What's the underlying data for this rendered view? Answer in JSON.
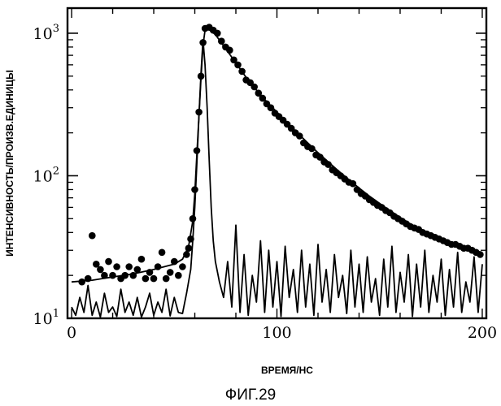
{
  "chart_data": {
    "type": "scatter",
    "figure_caption": "ФИГ.29",
    "xlabel": "ВРЕМЯ/НС",
    "ylabel": "ИНТЕНСИВНОСТЬ/ПРОИЗВ.ЕДИНИЦЫ",
    "xlim": [
      -2,
      202
    ],
    "ylim": [
      10,
      1500
    ],
    "y_scale": "log",
    "grid": false,
    "x_ticks": [
      0,
      100,
      200
    ],
    "x_tick_labels": [
      "0",
      "100",
      "200"
    ],
    "y_ticks": [
      {
        "value": 10,
        "base": "10",
        "exp": "1"
      },
      {
        "value": 100,
        "base": "10",
        "exp": "2"
      },
      {
        "value": 1000,
        "base": "10",
        "exp": "3"
      }
    ],
    "series": [
      {
        "kind": "scatter",
        "marker": "filled-circle",
        "color": "#000000",
        "points": [
          [
            5,
            18
          ],
          [
            8,
            19
          ],
          [
            10,
            38
          ],
          [
            12,
            24
          ],
          [
            14,
            22
          ],
          [
            16,
            20
          ],
          [
            18,
            25
          ],
          [
            20,
            20
          ],
          [
            22,
            23
          ],
          [
            24,
            19
          ],
          [
            26,
            20
          ],
          [
            28,
            23
          ],
          [
            30,
            20
          ],
          [
            32,
            22
          ],
          [
            34,
            26
          ],
          [
            36,
            19
          ],
          [
            38,
            21
          ],
          [
            40,
            19
          ],
          [
            42,
            23
          ],
          [
            44,
            29
          ],
          [
            46,
            19
          ],
          [
            48,
            21
          ],
          [
            50,
            25
          ],
          [
            52,
            20
          ],
          [
            54,
            23
          ],
          [
            56,
            28
          ],
          [
            57,
            31
          ],
          [
            58,
            36
          ],
          [
            59,
            50
          ],
          [
            60,
            80
          ],
          [
            61,
            150
          ],
          [
            62,
            280
          ],
          [
            63,
            500
          ],
          [
            64,
            860
          ],
          [
            65,
            1080
          ],
          [
            67,
            1100
          ],
          [
            69,
            1050
          ],
          [
            71,
            1000
          ],
          [
            73,
            880
          ],
          [
            75,
            800
          ],
          [
            77,
            760
          ],
          [
            79,
            650
          ],
          [
            81,
            600
          ],
          [
            83,
            540
          ],
          [
            85,
            470
          ],
          [
            87,
            450
          ],
          [
            89,
            420
          ],
          [
            91,
            380
          ],
          [
            93,
            350
          ],
          [
            95,
            320
          ],
          [
            97,
            300
          ],
          [
            99,
            275
          ],
          [
            101,
            260
          ],
          [
            103,
            245
          ],
          [
            105,
            230
          ],
          [
            107,
            215
          ],
          [
            109,
            200
          ],
          [
            111,
            190
          ],
          [
            113,
            170
          ],
          [
            115,
            160
          ],
          [
            117,
            155
          ],
          [
            119,
            140
          ],
          [
            121,
            135
          ],
          [
            123,
            125
          ],
          [
            125,
            120
          ],
          [
            127,
            110
          ],
          [
            129,
            105
          ],
          [
            131,
            100
          ],
          [
            133,
            95
          ],
          [
            135,
            90
          ],
          [
            137,
            88
          ],
          [
            139,
            80
          ],
          [
            141,
            75
          ],
          [
            143,
            72
          ],
          [
            145,
            68
          ],
          [
            147,
            65
          ],
          [
            149,
            62
          ],
          [
            151,
            60
          ],
          [
            153,
            57
          ],
          [
            155,
            55
          ],
          [
            157,
            52
          ],
          [
            159,
            50
          ],
          [
            161,
            48
          ],
          [
            163,
            46
          ],
          [
            165,
            44
          ],
          [
            167,
            43
          ],
          [
            169,
            42
          ],
          [
            171,
            40
          ],
          [
            173,
            39
          ],
          [
            175,
            38
          ],
          [
            177,
            37
          ],
          [
            179,
            36
          ],
          [
            181,
            35
          ],
          [
            183,
            34
          ],
          [
            185,
            33
          ],
          [
            187,
            33
          ],
          [
            189,
            32
          ],
          [
            191,
            31
          ],
          [
            193,
            31
          ],
          [
            195,
            30
          ],
          [
            197,
            29
          ],
          [
            199,
            28
          ]
        ]
      },
      {
        "kind": "line",
        "name": "",
        "color": "#000000",
        "points": [
          [
            0,
            18
          ],
          [
            10,
            18.5
          ],
          [
            20,
            19.5
          ],
          [
            30,
            20.5
          ],
          [
            40,
            22
          ],
          [
            50,
            24
          ],
          [
            54,
            26
          ],
          [
            57,
            32
          ],
          [
            59,
            48
          ],
          [
            60,
            75
          ],
          [
            61,
            140
          ],
          [
            62,
            260
          ],
          [
            63,
            480
          ],
          [
            64,
            820
          ],
          [
            65,
            1050
          ],
          [
            67,
            1060
          ],
          [
            70,
            980
          ],
          [
            75,
            780
          ],
          [
            80,
            620
          ],
          [
            85,
            490
          ],
          [
            90,
            400
          ],
          [
            95,
            330
          ],
          [
            100,
            280
          ],
          [
            105,
            235
          ],
          [
            110,
            200
          ],
          [
            115,
            170
          ],
          [
            120,
            145
          ],
          [
            125,
            125
          ],
          [
            130,
            108
          ],
          [
            135,
            94
          ],
          [
            140,
            82
          ],
          [
            145,
            72
          ],
          [
            150,
            64
          ],
          [
            155,
            57
          ],
          [
            160,
            51
          ],
          [
            165,
            46
          ],
          [
            170,
            42
          ],
          [
            175,
            39
          ],
          [
            180,
            36
          ],
          [
            185,
            34
          ],
          [
            190,
            32
          ],
          [
            195,
            30
          ],
          [
            200,
            29
          ]
        ]
      },
      {
        "kind": "line",
        "name": "",
        "color": "#000000",
        "points": [
          [
            0,
            12
          ],
          [
            2,
            10.5
          ],
          [
            4,
            14
          ],
          [
            6,
            11
          ],
          [
            8,
            17
          ],
          [
            10,
            10.5
          ],
          [
            12,
            13
          ],
          [
            14,
            10.2
          ],
          [
            16,
            15
          ],
          [
            18,
            11
          ],
          [
            20,
            12
          ],
          [
            22,
            10.3
          ],
          [
            24,
            16
          ],
          [
            26,
            11
          ],
          [
            28,
            13
          ],
          [
            30,
            10.5
          ],
          [
            32,
            14
          ],
          [
            34,
            10.2
          ],
          [
            36,
            12
          ],
          [
            38,
            15
          ],
          [
            40,
            10.5
          ],
          [
            42,
            13
          ],
          [
            44,
            11
          ],
          [
            46,
            16
          ],
          [
            48,
            10.4
          ],
          [
            50,
            14
          ],
          [
            52,
            11
          ],
          [
            54,
            10.8
          ],
          [
            56,
            15
          ],
          [
            58,
            22
          ],
          [
            59,
            35
          ],
          [
            60,
            60
          ],
          [
            61,
            120
          ],
          [
            62,
            260
          ],
          [
            63,
            520
          ],
          [
            64,
            900
          ],
          [
            65,
            600
          ],
          [
            66,
            300
          ],
          [
            67,
            130
          ],
          [
            68,
            60
          ],
          [
            69,
            35
          ],
          [
            70,
            25
          ],
          [
            72,
            18
          ],
          [
            74,
            14
          ],
          [
            76,
            25
          ],
          [
            78,
            12
          ],
          [
            80,
            45
          ],
          [
            82,
            11
          ],
          [
            84,
            28
          ],
          [
            86,
            10.5
          ],
          [
            88,
            20
          ],
          [
            90,
            13
          ],
          [
            92,
            35
          ],
          [
            94,
            11
          ],
          [
            96,
            30
          ],
          [
            98,
            12
          ],
          [
            100,
            25
          ],
          [
            102,
            10.3
          ],
          [
            104,
            32
          ],
          [
            106,
            14
          ],
          [
            108,
            22
          ],
          [
            110,
            11
          ],
          [
            112,
            30
          ],
          [
            114,
            12
          ],
          [
            116,
            24
          ],
          [
            118,
            10.5
          ],
          [
            120,
            33
          ],
          [
            122,
            13
          ],
          [
            124,
            22
          ],
          [
            126,
            11
          ],
          [
            128,
            28
          ],
          [
            130,
            14
          ],
          [
            132,
            20
          ],
          [
            134,
            10.8
          ],
          [
            136,
            30
          ],
          [
            138,
            12
          ],
          [
            140,
            24
          ],
          [
            142,
            11
          ],
          [
            144,
            27
          ],
          [
            146,
            13
          ],
          [
            148,
            19
          ],
          [
            150,
            10.5
          ],
          [
            152,
            26
          ],
          [
            154,
            12
          ],
          [
            156,
            32
          ],
          [
            158,
            11
          ],
          [
            160,
            21
          ],
          [
            162,
            13
          ],
          [
            164,
            28
          ],
          [
            166,
            10.3
          ],
          [
            168,
            24
          ],
          [
            170,
            12
          ],
          [
            172,
            30
          ],
          [
            174,
            11
          ],
          [
            176,
            20
          ],
          [
            178,
            13
          ],
          [
            180,
            26
          ],
          [
            182,
            10.5
          ],
          [
            184,
            22
          ],
          [
            186,
            12
          ],
          [
            188,
            29
          ],
          [
            190,
            11
          ],
          [
            192,
            18
          ],
          [
            194,
            13
          ],
          [
            196,
            27
          ],
          [
            198,
            11
          ],
          [
            200,
            24
          ]
        ]
      }
    ]
  }
}
